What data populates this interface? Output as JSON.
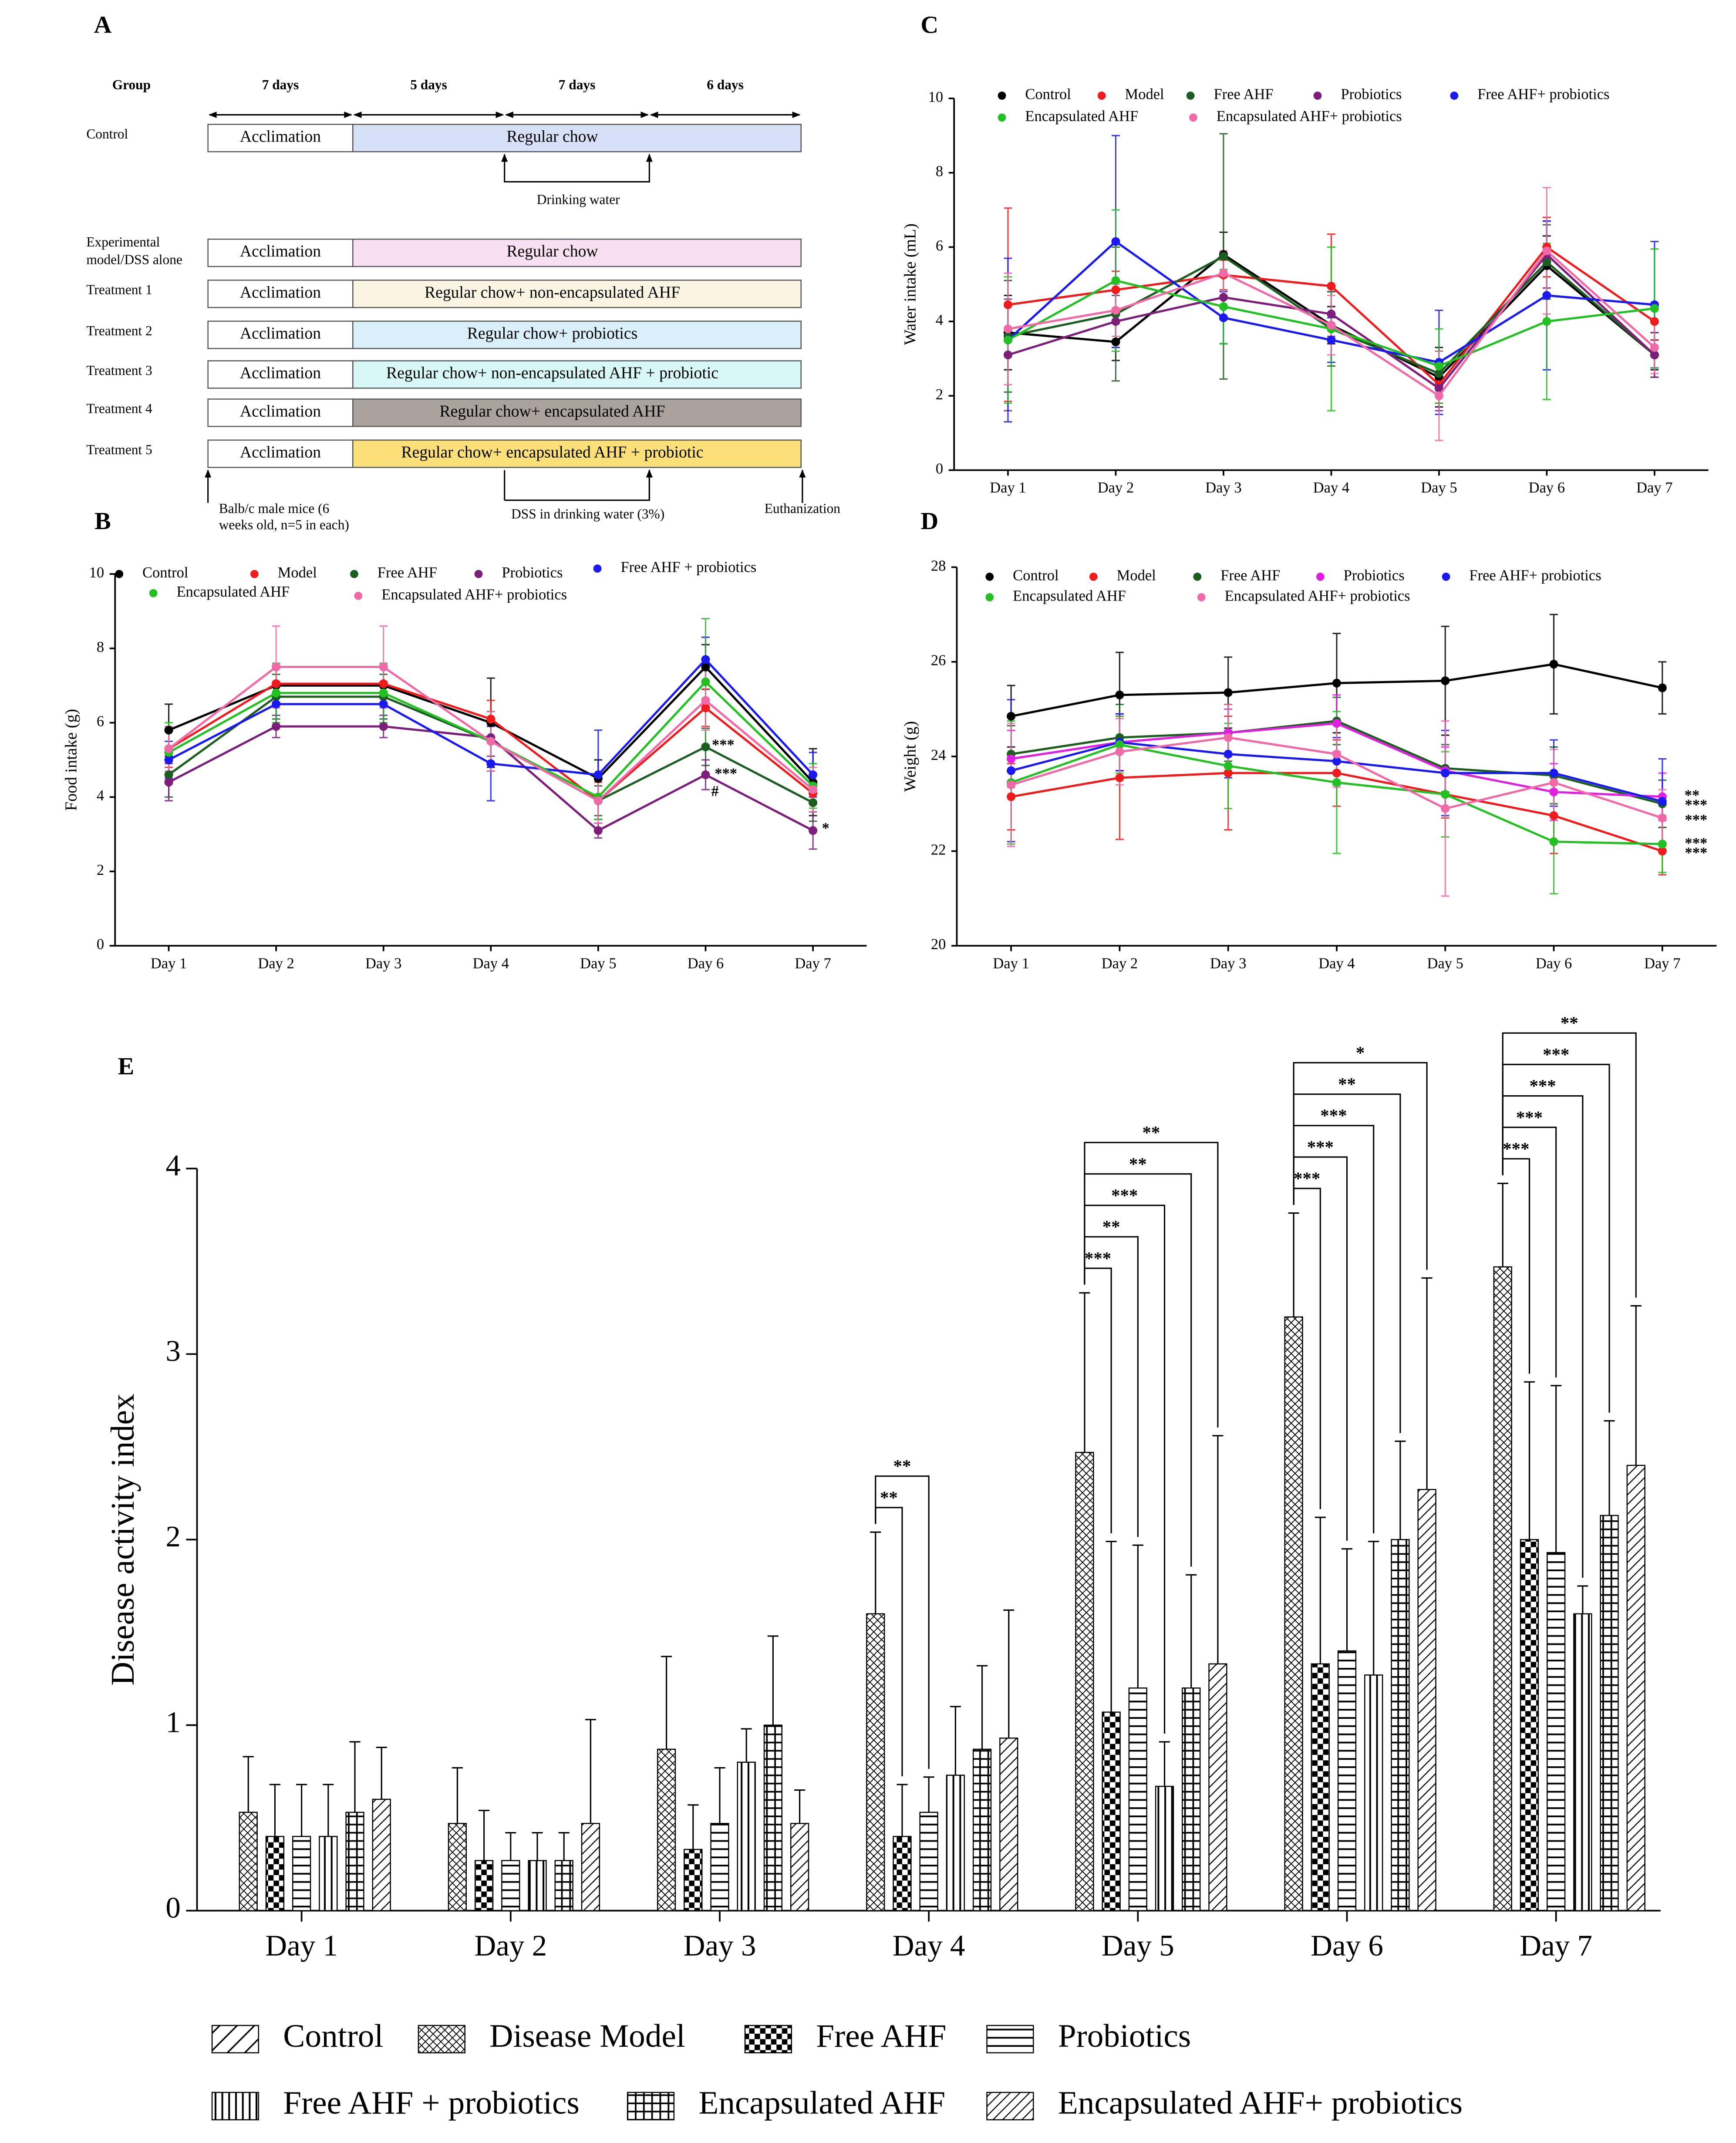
{
  "timeline": {
    "panel": "A",
    "header": [
      "Group",
      "7 days",
      "5 days",
      "7 days",
      "6 days"
    ],
    "rows": [
      {
        "group": [
          "Control"
        ],
        "phase1": "Acclimation",
        "phase2": "Regular chow",
        "color": "#d6e0f6"
      },
      {
        "group": [
          "Experimental",
          "model/DSS alone"
        ],
        "phase1": "Acclimation",
        "phase2": "Regular chow",
        "color": "#f8e0f2"
      },
      {
        "group": [
          "Treatment 1"
        ],
        "phase1": "Acclimation",
        "phase2": "Regular chow+ non-encapsulated AHF",
        "color": "#faf5e2"
      },
      {
        "group": [
          "Treatment 2"
        ],
        "phase1": "Acclimation",
        "phase2": "Regular chow+ probiotics",
        "color": "#d9eff9"
      },
      {
        "group": [
          "Treatment 3"
        ],
        "phase1": "Acclimation",
        "phase2": "Regular chow+ non-encapsulated AHF + probiotic",
        "color": "#d8f7f7"
      },
      {
        "group": [
          "Treatment 4"
        ],
        "phase1": "Acclimation",
        "phase2": "Regular chow+ encapsulated AHF",
        "color": "#a9a29d"
      },
      {
        "group": [
          "Treatment 5"
        ],
        "phase1": "Acclimation",
        "phase2": "Regular chow+ encapsulated AHF + probiotic",
        "color": "#fbe07a"
      }
    ],
    "drinking": "Drinking water",
    "start": [
      "Balb/c male mice (6",
      "weeks old, n=5 in each)"
    ],
    "dss": "DSS in drinking water (3%)",
    "end": "Euthanization"
  },
  "chart_data": [
    {
      "panel": "B",
      "type": "line",
      "ylabel": "Food intake (g)",
      "categories": [
        "Day 1",
        "Day 2",
        "Day 3",
        "Day 4",
        "Day 5",
        "Day 6",
        "Day 7"
      ],
      "ylim": [
        0,
        10
      ],
      "yticks": [
        0,
        2,
        4,
        6,
        8,
        10
      ],
      "series": [
        {
          "name": "Control",
          "color": "#000000",
          "values": [
            5.8,
            7.0,
            7.0,
            6.0,
            4.5,
            7.5,
            4.4
          ],
          "errors": [
            0.7,
            0.5,
            0.5,
            1.2,
            0.5,
            0.6,
            0.9
          ]
        },
        {
          "name": "Model",
          "color": "#ee1c1c",
          "values": [
            5.3,
            7.05,
            7.05,
            6.1,
            3.9,
            6.4,
            4.1
          ],
          "errors": [
            0.5,
            0.5,
            0.5,
            0.5,
            0.5,
            0.5,
            0.5
          ]
        },
        {
          "name": "Free AHF",
          "color": "#1b5e20",
          "values": [
            4.6,
            6.7,
            6.7,
            5.5,
            3.9,
            5.35,
            3.85
          ],
          "errors": [
            0.6,
            0.6,
            0.6,
            0.8,
            0.4,
            0.5,
            0.5
          ]
        },
        {
          "name": "Probiotics",
          "color": "#7b1f7b",
          "values": [
            4.4,
            5.9,
            5.9,
            5.6,
            3.1,
            4.6,
            3.1
          ],
          "errors": [
            0.5,
            0.3,
            0.3,
            0.5,
            0.2,
            0.4,
            0.5
          ]
        },
        {
          "name": "Free AHF + probiotics",
          "color": "#1a1aee",
          "values": [
            5.0,
            6.5,
            6.5,
            4.9,
            4.6,
            7.7,
            4.6
          ],
          "errors": [
            0.5,
            0.6,
            0.6,
            1.0,
            1.2,
            0.6,
            0.6
          ]
        },
        {
          "name": "Encapsulated AHF",
          "color": "#22c022",
          "values": [
            5.2,
            6.8,
            6.8,
            5.5,
            4.0,
            7.1,
            4.3
          ],
          "errors": [
            0.8,
            0.8,
            0.8,
            0.6,
            0.6,
            1.7,
            0.6
          ]
        },
        {
          "name": "Encapsulated AHF+ probiotics",
          "color": "#f06aa8",
          "values": [
            5.3,
            7.5,
            7.5,
            5.5,
            3.9,
            6.6,
            4.2
          ],
          "errors": [
            0.6,
            1.1,
            1.1,
            0.8,
            0.6,
            0.8,
            0.6
          ]
        }
      ],
      "annotations": [
        "***",
        "***",
        "#",
        "*"
      ]
    },
    {
      "panel": "C",
      "type": "line",
      "ylabel": "Water intake (mL)",
      "categories": [
        "Day 1",
        "Day 2",
        "Day 3",
        "Day 4",
        "Day 5",
        "Day 6",
        "Day 7"
      ],
      "ylim": [
        0,
        10
      ],
      "yticks": [
        0,
        2,
        4,
        6,
        8,
        10
      ],
      "series": [
        {
          "name": "Control",
          "color": "#000000",
          "values": [
            3.7,
            3.45,
            5.8,
            3.9,
            2.5,
            5.5,
            3.1
          ],
          "errors": [
            1.0,
            0.5,
            0.6,
            0.5,
            0.8,
            0.8,
            0.4
          ]
        },
        {
          "name": "Model",
          "color": "#ee1c1c",
          "values": [
            4.45,
            4.85,
            5.25,
            4.95,
            2.3,
            6.0,
            4.0
          ],
          "errors": [
            2.6,
            0.5,
            0.4,
            1.4,
            0.5,
            0.8,
            0.5
          ]
        },
        {
          "name": "Free AHF",
          "color": "#1b5e20",
          "values": [
            3.6,
            4.2,
            5.75,
            3.8,
            2.6,
            5.6,
            3.1
          ],
          "errors": [
            1.5,
            1.8,
            3.3,
            1.0,
            0.6,
            1.0,
            0.6
          ]
        },
        {
          "name": "Probiotics",
          "color": "#7b1f7b",
          "values": [
            3.1,
            4.0,
            4.65,
            4.2,
            2.2,
            5.8,
            3.1
          ],
          "errors": [
            1.5,
            0.7,
            0.6,
            0.6,
            0.6,
            0.9,
            0.6
          ]
        },
        {
          "name": "Free AHF+ probiotics",
          "color": "#1a1aee",
          "values": [
            3.5,
            6.15,
            4.1,
            3.5,
            2.9,
            4.7,
            4.45
          ],
          "errors": [
            2.2,
            2.85,
            0.7,
            0.6,
            1.4,
            2.0,
            1.7
          ]
        },
        {
          "name": "Encapsulated AHF",
          "color": "#22c022",
          "values": [
            3.5,
            5.1,
            4.4,
            3.8,
            2.8,
            4.0,
            4.35
          ],
          "errors": [
            1.7,
            1.9,
            1.0,
            2.2,
            1.0,
            2.1,
            1.6
          ]
        },
        {
          "name": "Encapsulated AHF+ probiotics",
          "color": "#f06aa8",
          "values": [
            3.8,
            4.3,
            5.3,
            3.9,
            2.0,
            5.9,
            3.3
          ],
          "errors": [
            1.5,
            0.7,
            0.6,
            0.8,
            1.2,
            1.7,
            0.7
          ]
        }
      ],
      "annotations": []
    },
    {
      "panel": "D",
      "type": "line",
      "ylabel": "Weight (g)",
      "categories": [
        "Day 1",
        "Day 2",
        "Day 3",
        "Day 4",
        "Day 5",
        "Day 6",
        "Day 7"
      ],
      "ylim": [
        20,
        28
      ],
      "yticks": [
        20,
        22,
        24,
        26,
        28
      ],
      "series": [
        {
          "name": "Control",
          "color": "#000000",
          "values": [
            24.85,
            25.3,
            25.35,
            25.55,
            25.6,
            25.95,
            25.45
          ],
          "errors": [
            0.65,
            0.9,
            0.75,
            1.05,
            1.15,
            1.05,
            0.55
          ]
        },
        {
          "name": "Model",
          "color": "#ee1c1c",
          "values": [
            23.15,
            23.55,
            23.65,
            23.65,
            23.2,
            22.75,
            22.0
          ],
          "errors": [
            0.7,
            1.3,
            1.2,
            0.7,
            0.5,
            0.8,
            0.5
          ]
        },
        {
          "name": "Free AHF",
          "color": "#1b5e20",
          "values": [
            24.05,
            24.4,
            24.5,
            24.75,
            23.75,
            23.6,
            23.0
          ],
          "errors": [
            0.6,
            0.7,
            0.6,
            0.5,
            0.5,
            0.6,
            0.5
          ]
        },
        {
          "name": "Probiotics",
          "color": "#e020e0",
          "values": [
            23.95,
            24.3,
            24.5,
            24.7,
            23.7,
            23.25,
            23.15
          ],
          "errors": [
            0.6,
            0.6,
            0.5,
            0.6,
            0.5,
            0.6,
            0.5
          ]
        },
        {
          "name": "Free AHF+ probiotics",
          "color": "#1a1aee",
          "values": [
            23.7,
            24.3,
            24.05,
            23.9,
            23.65,
            23.65,
            23.05
          ],
          "errors": [
            1.5,
            0.6,
            0.5,
            0.5,
            0.9,
            0.7,
            0.9
          ]
        },
        {
          "name": "Encapsulated AHF",
          "color": "#22c022",
          "values": [
            23.45,
            24.25,
            23.8,
            23.45,
            23.2,
            22.2,
            22.15
          ],
          "errors": [
            1.3,
            0.6,
            0.9,
            1.5,
            0.9,
            1.1,
            0.6
          ]
        },
        {
          "name": "Encapsulated AHF+ probiotics",
          "color": "#f06aa8",
          "values": [
            23.4,
            24.1,
            24.4,
            24.05,
            22.9,
            23.45,
            22.7
          ],
          "errors": [
            1.3,
            0.7,
            0.7,
            0.7,
            1.85,
            0.7,
            0.6
          ]
        }
      ],
      "annotations": [
        "**",
        "***",
        "***",
        "***",
        "***"
      ]
    },
    {
      "panel": "E",
      "type": "bar",
      "ylabel": "Disease activity index",
      "categories": [
        "Day 1",
        "Day 2",
        "Day 3",
        "Day 4",
        "Day 5",
        "Day 6",
        "Day 7"
      ],
      "ylim": [
        0,
        4
      ],
      "yticks": [
        0,
        1,
        2,
        3,
        4
      ],
      "series": [
        {
          "name": "Control",
          "pattern": "diag-wide",
          "values": [
            0,
            0,
            0,
            0,
            0,
            0,
            0
          ],
          "errors": [
            0,
            0,
            0,
            0,
            0,
            0,
            0
          ]
        },
        {
          "name": "Disease Model",
          "pattern": "crosshatch",
          "values": [
            0.53,
            0.47,
            0.87,
            1.6,
            2.47,
            3.2,
            3.47
          ],
          "errors": [
            0.3,
            0.3,
            0.5,
            0.44,
            0.86,
            0.56,
            0.45
          ]
        },
        {
          "name": "Free AHF",
          "pattern": "checker",
          "values": [
            0.4,
            0.27,
            0.33,
            0.4,
            1.07,
            1.33,
            2.0
          ],
          "errors": [
            0.28,
            0.27,
            0.24,
            0.28,
            0.92,
            0.79,
            0.85
          ]
        },
        {
          "name": "Probiotics",
          "pattern": "hlines",
          "values": [
            0.4,
            0.27,
            0.47,
            0.53,
            1.2,
            1.4,
            1.93
          ],
          "errors": [
            0.28,
            0.15,
            0.3,
            0.19,
            0.77,
            0.55,
            0.9
          ]
        },
        {
          "name": "Free AHF + probiotics",
          "pattern": "vlines",
          "values": [
            0.4,
            0.27,
            0.8,
            0.73,
            0.67,
            1.27,
            1.6
          ],
          "errors": [
            0.28,
            0.15,
            0.18,
            0.37,
            0.24,
            0.72,
            0.15
          ]
        },
        {
          "name": "Encapsulated AHF",
          "pattern": "grid",
          "values": [
            0.53,
            0.27,
            1.0,
            0.87,
            1.2,
            2.0,
            2.13
          ],
          "errors": [
            0.38,
            0.15,
            0.48,
            0.45,
            0.61,
            0.53,
            0.51
          ]
        },
        {
          "name": "Encapsulated AHF+ probiotics",
          "pattern": "diag-dense",
          "values": [
            0.6,
            0.47,
            0.47,
            0.93,
            1.33,
            2.27,
            2.4
          ],
          "errors": [
            0.28,
            0.56,
            0.18,
            0.69,
            1.23,
            1.14,
            0.86
          ]
        }
      ],
      "significance": [
        [],
        [],
        [],
        [
          "**",
          "**"
        ],
        [
          "***",
          "**",
          "***",
          "**",
          "**"
        ],
        [
          "***",
          "***",
          "***",
          "**",
          "*"
        ],
        [
          "***",
          "***",
          "***",
          "***",
          "**"
        ]
      ]
    }
  ]
}
